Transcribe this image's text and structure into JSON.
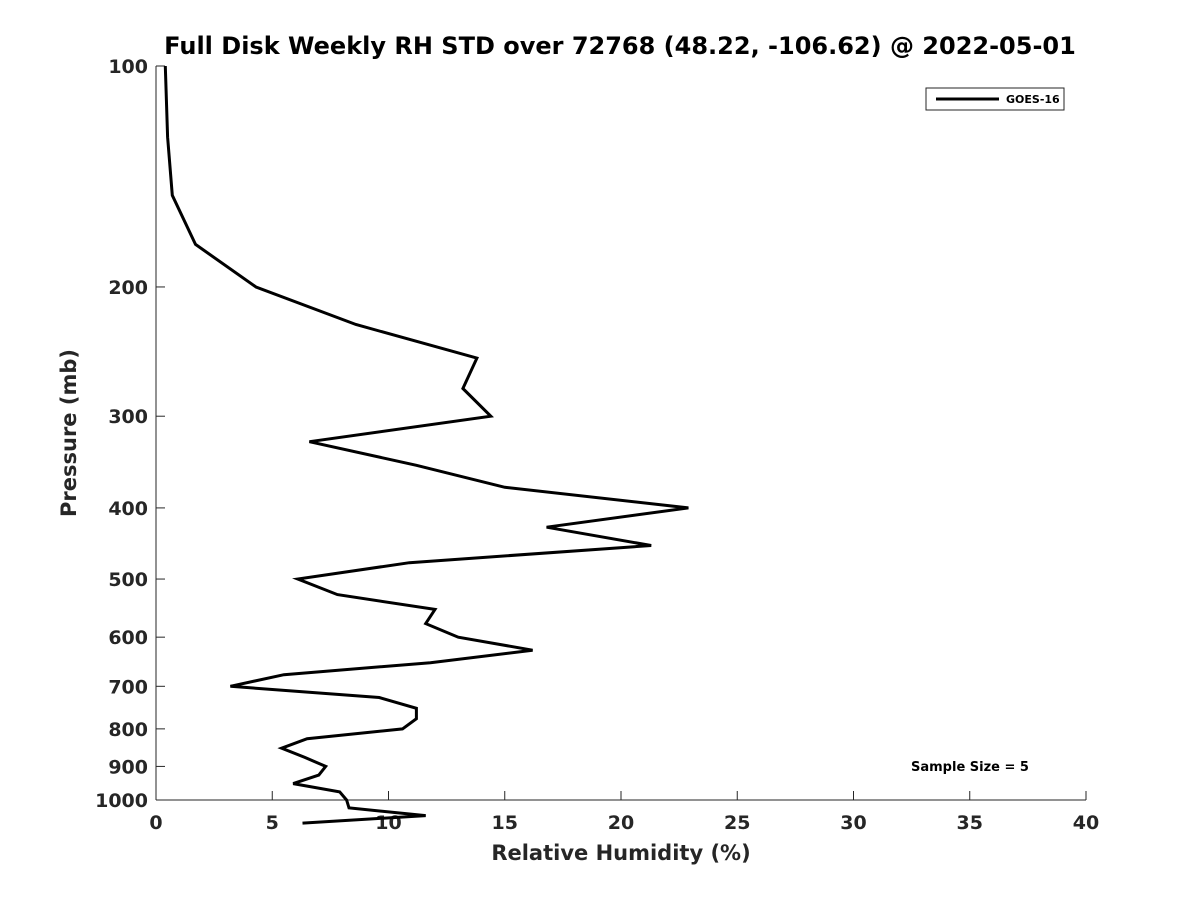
{
  "chart_data": {
    "type": "line",
    "title": "Full Disk Weekly RH STD over 72768 (48.22, -106.62) @ 2022-05-01",
    "xlabel": "Relative Humidity (%)",
    "ylabel": "Pressure (mb)",
    "xlim": [
      0,
      40
    ],
    "ylim": [
      100,
      1000
    ],
    "y_scale": "log",
    "y_reversed": true,
    "grid": false,
    "legend_position": "top-right",
    "x_ticks": [
      "0",
      "5",
      "10",
      "15",
      "20",
      "25",
      "30",
      "35",
      "40"
    ],
    "y_ticks": [
      "100",
      "200",
      "300",
      "400",
      "500",
      "600",
      "700",
      "800",
      "900",
      "1000"
    ],
    "annotation": "Sample Size = 5",
    "series": [
      {
        "name": "GOES-16",
        "color": "#000000",
        "points": [
          [
            0.4,
            100
          ],
          [
            0.5,
            125
          ],
          [
            0.7,
            150
          ],
          [
            1.7,
            175
          ],
          [
            4.3,
            200
          ],
          [
            8.6,
            225
          ],
          [
            13.8,
            250
          ],
          [
            13.2,
            275
          ],
          [
            14.4,
            300
          ],
          [
            6.6,
            325
          ],
          [
            11.2,
            350
          ],
          [
            15.0,
            375
          ],
          [
            22.9,
            400
          ],
          [
            16.8,
            425
          ],
          [
            21.3,
            450
          ],
          [
            10.9,
            475
          ],
          [
            6.1,
            500
          ],
          [
            7.8,
            525
          ],
          [
            12.0,
            550
          ],
          [
            11.6,
            575
          ],
          [
            13.0,
            600
          ],
          [
            16.2,
            625
          ],
          [
            11.8,
            650
          ],
          [
            5.5,
            675
          ],
          [
            3.2,
            700
          ],
          [
            9.6,
            725
          ],
          [
            11.2,
            750
          ],
          [
            11.2,
            775
          ],
          [
            10.6,
            800
          ],
          [
            6.5,
            825
          ],
          [
            5.4,
            850
          ],
          [
            6.4,
            875
          ],
          [
            7.3,
            900
          ],
          [
            7.0,
            925
          ],
          [
            5.9,
            950
          ],
          [
            7.9,
            975
          ],
          [
            8.2,
            1000
          ],
          [
            8.3,
            1025
          ],
          [
            11.6,
            1050
          ],
          [
            6.3,
            1075
          ]
        ]
      }
    ]
  }
}
